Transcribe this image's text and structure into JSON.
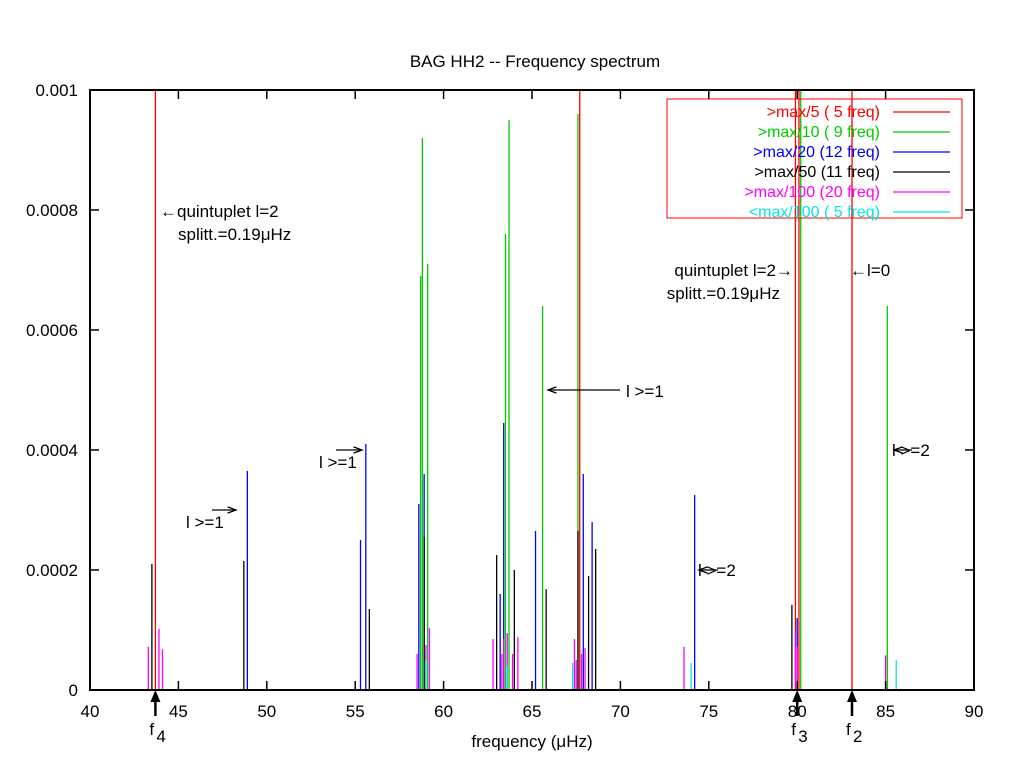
{
  "chart_data": {
    "type": "bar",
    "title": "BAG HH2 -- Frequency spectrum",
    "xlabel": "frequency (μHz)",
    "ylabel": "",
    "xlim": [
      40,
      90
    ],
    "ylim": [
      0,
      0.001
    ],
    "xticks": [
      "40",
      "45",
      "50",
      "55",
      "60",
      "65",
      "70",
      "75",
      "80",
      "85",
      "90"
    ],
    "yticks": [
      "0",
      "0.0002",
      "0.0004",
      "0.0006",
      "0.0008",
      "0.001"
    ],
    "grid": false,
    "legend_position": "top-right",
    "series": [
      {
        "name": ">max/5   ( 5 freq)",
        "color": "#ff0000",
        "x": [
          43.7,
          67.7,
          79.9,
          80.1,
          83.1
        ],
        "values": [
          0.001,
          0.001,
          0.001,
          0.001,
          0.001
        ]
      },
      {
        "name": ">max/10  ( 9 freq)",
        "color": "#00cc00",
        "x": [
          58.7,
          58.8,
          59.1,
          63.5,
          63.7,
          65.6,
          67.6,
          80.2,
          85.1
        ],
        "values": [
          0.00069,
          0.00092,
          0.00071,
          0.00076,
          0.00095,
          0.00064,
          0.00096,
          0.001,
          0.00064
        ]
      },
      {
        "name": ">max/20  (12 freq)",
        "color": "#0000ff",
        "x": [
          48.9,
          55.3,
          55.6,
          58.6,
          58.9,
          63.2,
          63.4,
          65.2,
          67.9,
          68.4,
          74.2,
          80.0
        ],
        "values": [
          0.000365,
          0.00025,
          0.00041,
          0.00031,
          0.00036,
          0.00016,
          0.000445,
          0.000265,
          0.00036,
          0.00028,
          0.000325,
          0.00012
        ]
      },
      {
        "name": ">max/50  (11 freq)",
        "color": "#000000",
        "x": [
          43.5,
          48.7,
          55.8,
          58.9,
          63.0,
          64.0,
          65.8,
          67.6,
          68.2,
          68.6,
          79.7
        ],
        "values": [
          0.00021,
          0.000215,
          0.000135,
          0.000255,
          0.000225,
          0.0002,
          0.000168,
          0.000265,
          0.00019,
          0.000235,
          0.000142
        ]
      },
      {
        "name": ">max/100 (20 freq)",
        "color": "#ff00ff",
        "x": [
          43.3,
          43.9,
          44.1,
          58.5,
          59.0,
          59.2,
          62.8,
          63.4,
          63.6,
          63.9,
          64.2,
          67.4,
          67.8,
          68.0,
          73.6,
          79.9,
          80.0,
          85.0,
          63.3,
          67.5
        ],
        "values": [
          7.2e-05,
          0.000102,
          6.8e-05,
          6e-05,
          7.5e-05,
          0.000103,
          8.5e-05,
          8.5e-05,
          9.5e-05,
          6e-05,
          8.8e-05,
          8.5e-05,
          6e-05,
          7e-05,
          7.2e-05,
          9.5e-05,
          7.2e-05,
          5.8e-05,
          6e-05,
          5e-05
        ]
      },
      {
        "name": "<max/100 ( 5 freq)",
        "color": "#00e5e5",
        "x": [
          59.0,
          63.6,
          67.3,
          74.0,
          85.6
        ],
        "values": [
          5e-05,
          4e-05,
          4.5e-05,
          4.5e-05,
          5e-05
        ]
      }
    ],
    "annotations": [
      {
        "id": "quint-left",
        "lines": [
          "←quintuplet l=2",
          "splitt.=0.19μHz"
        ]
      },
      {
        "id": "l1-a",
        "lines": [
          "l >=1"
        ]
      },
      {
        "id": "l1-b",
        "lines": [
          "l >=1"
        ]
      },
      {
        "id": "l1-c",
        "lines": [
          "l >=1"
        ]
      },
      {
        "id": "quint-right",
        "lines": [
          "quintuplet l=2→",
          "splitt.=0.19μHz"
        ]
      },
      {
        "id": "l0",
        "lines": [
          "←l=0"
        ]
      },
      {
        "id": "l2-a",
        "lines": [
          "l >=2"
        ]
      },
      {
        "id": "l2-b",
        "lines": [
          "l >=2"
        ]
      }
    ],
    "markers": [
      {
        "x": 43.7,
        "label": "f",
        "sub": "4"
      },
      {
        "x": 80.0,
        "label": "f",
        "sub": "3"
      },
      {
        "x": 83.1,
        "label": "f",
        "sub": "2"
      }
    ]
  }
}
